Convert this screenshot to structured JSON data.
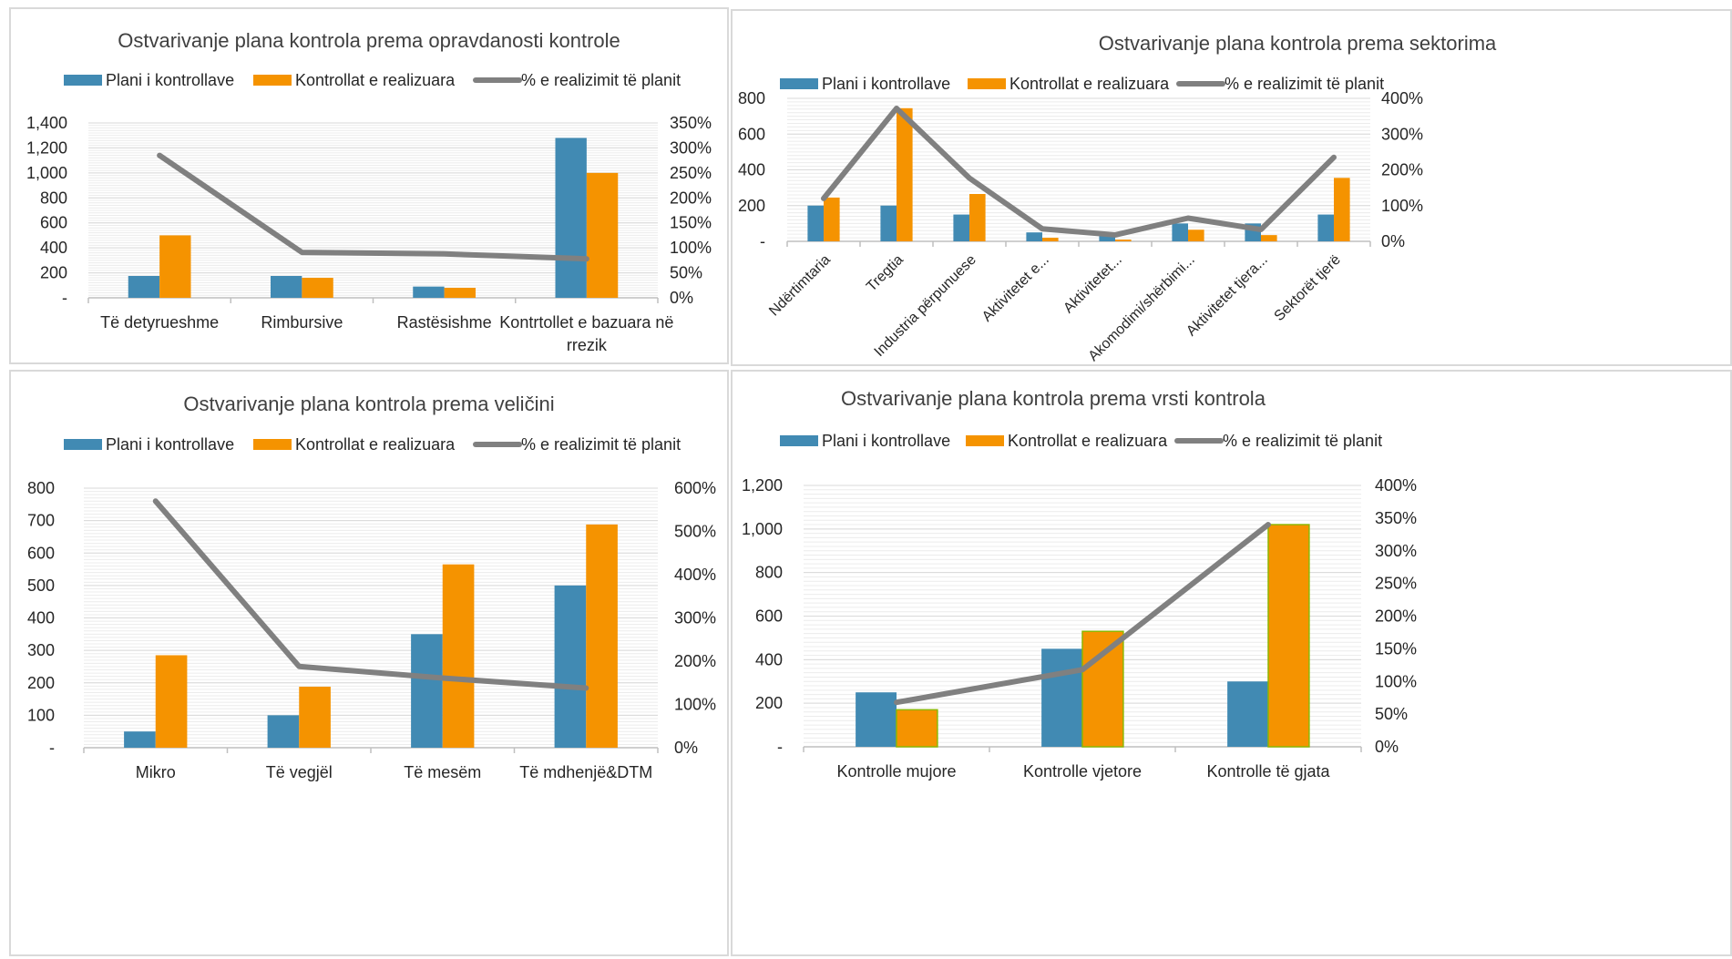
{
  "legend": {
    "plan": "Plani i kontrollave",
    "realized": "Kontrollat e realizuara",
    "pct": "% e realizimit të planit"
  },
  "colors": {
    "plan": "#418AB3",
    "realized": "#F59300",
    "line": "#808080",
    "grid": "#D9D9D9"
  },
  "chart_data": [
    {
      "type": "bar",
      "title": "Ostvarivanje plana kontrola prema  opravdanosti kontrole",
      "categories": [
        "Të detyrueshme",
        "Rimbursive",
        "Rastësishme",
        "Kontrtollet e bazuara në rrezik"
      ],
      "series": [
        {
          "name": "Plani i kontrollave",
          "type": "bar",
          "values": [
            175,
            175,
            90,
            1280
          ]
        },
        {
          "name": "Kontrollat e realizuara",
          "type": "bar",
          "values": [
            500,
            160,
            80,
            1000
          ]
        },
        {
          "name": "% e realizimit të planit",
          "type": "line",
          "axis": "secondary",
          "values": [
            285,
            91,
            88,
            78
          ]
        }
      ],
      "ylim": [
        0,
        1400
      ],
      "yticks": [
        "-",
        "200",
        "400",
        "600",
        "800",
        "1,000",
        "1,200",
        "1,400"
      ],
      "y2lim": [
        0,
        350
      ],
      "y2ticks": [
        "0%",
        "50%",
        "100%",
        "150%",
        "200%",
        "250%",
        "300%",
        "350%"
      ],
      "grid": true,
      "legend_position": "top"
    },
    {
      "type": "bar",
      "title": "Ostvarivanje plana kontrola prema  sektorima",
      "categories": [
        "Ndërtimtaria",
        "Tregtia",
        "Industria përpunuese",
        "Aktivitetet e...",
        "Aktivitetet...",
        "Akomodimi/shërbimi...",
        "Aktivitetet tjera...",
        "Sektorët tjerë"
      ],
      "series": [
        {
          "name": "Plani i kontrollave",
          "type": "bar",
          "values": [
            200,
            200,
            150,
            50,
            50,
            100,
            100,
            150
          ]
        },
        {
          "name": "Kontrollat e realizuara",
          "type": "bar",
          "values": [
            245,
            745,
            265,
            20,
            10,
            65,
            35,
            355
          ]
        },
        {
          "name": "% e realizimit të planit",
          "type": "line",
          "axis": "secondary",
          "values": [
            120,
            372,
            177,
            35,
            18,
            65,
            33,
            235
          ]
        }
      ],
      "ylim": [
        0,
        800
      ],
      "yticks": [
        "-",
        "200",
        "400",
        "600",
        "800"
      ],
      "y2lim": [
        0,
        400
      ],
      "y2ticks": [
        "0%",
        "100%",
        "200%",
        "300%",
        "400%"
      ],
      "grid": true,
      "legend_position": "top"
    },
    {
      "type": "bar",
      "title": "Ostvarivanje plana kontrola prema veličini",
      "categories": [
        "Mikro",
        "Të vegjël",
        "Të mesëm",
        "Të mdhenjë&DTM"
      ],
      "series": [
        {
          "name": "Plani i kontrollave",
          "type": "bar",
          "values": [
            50,
            100,
            350,
            500
          ]
        },
        {
          "name": "Kontrollat e realizuara",
          "type": "bar",
          "values": [
            285,
            188,
            565,
            688
          ]
        },
        {
          "name": "% e realizimit të planit",
          "type": "line",
          "axis": "secondary",
          "values": [
            570,
            188,
            161,
            138
          ]
        }
      ],
      "ylim": [
        0,
        800
      ],
      "yticks": [
        "-",
        "100",
        "200",
        "300",
        "400",
        "500",
        "600",
        "700",
        "800"
      ],
      "y2lim": [
        0,
        600
      ],
      "y2ticks": [
        "0%",
        "100%",
        "200%",
        "300%",
        "400%",
        "500%",
        "600%"
      ],
      "grid": true,
      "legend_position": "top"
    },
    {
      "type": "bar",
      "title": "Ostvarivanje plana kontrola prema vrsti kontrola",
      "categories": [
        "Kontrolle mujore",
        "Kontrolle vjetore",
        "Kontrolle të gjata"
      ],
      "series": [
        {
          "name": "Plani i kontrollave",
          "type": "bar",
          "values": [
            250,
            450,
            300
          ]
        },
        {
          "name": "Kontrollat e realizuara",
          "type": "bar",
          "values": [
            170,
            530,
            1020
          ]
        },
        {
          "name": "% e realizimit të planit",
          "type": "line",
          "axis": "secondary",
          "values": [
            68,
            118,
            340
          ]
        }
      ],
      "ylim": [
        0,
        1200
      ],
      "yticks": [
        "-",
        "200",
        "400",
        "600",
        "800",
        "1,000",
        "1,200"
      ],
      "y2lim": [
        0,
        400
      ],
      "y2ticks": [
        "0%",
        "50%",
        "100%",
        "150%",
        "200%",
        "250%",
        "300%",
        "350%",
        "400%"
      ],
      "grid": true,
      "legend_position": "top"
    }
  ]
}
